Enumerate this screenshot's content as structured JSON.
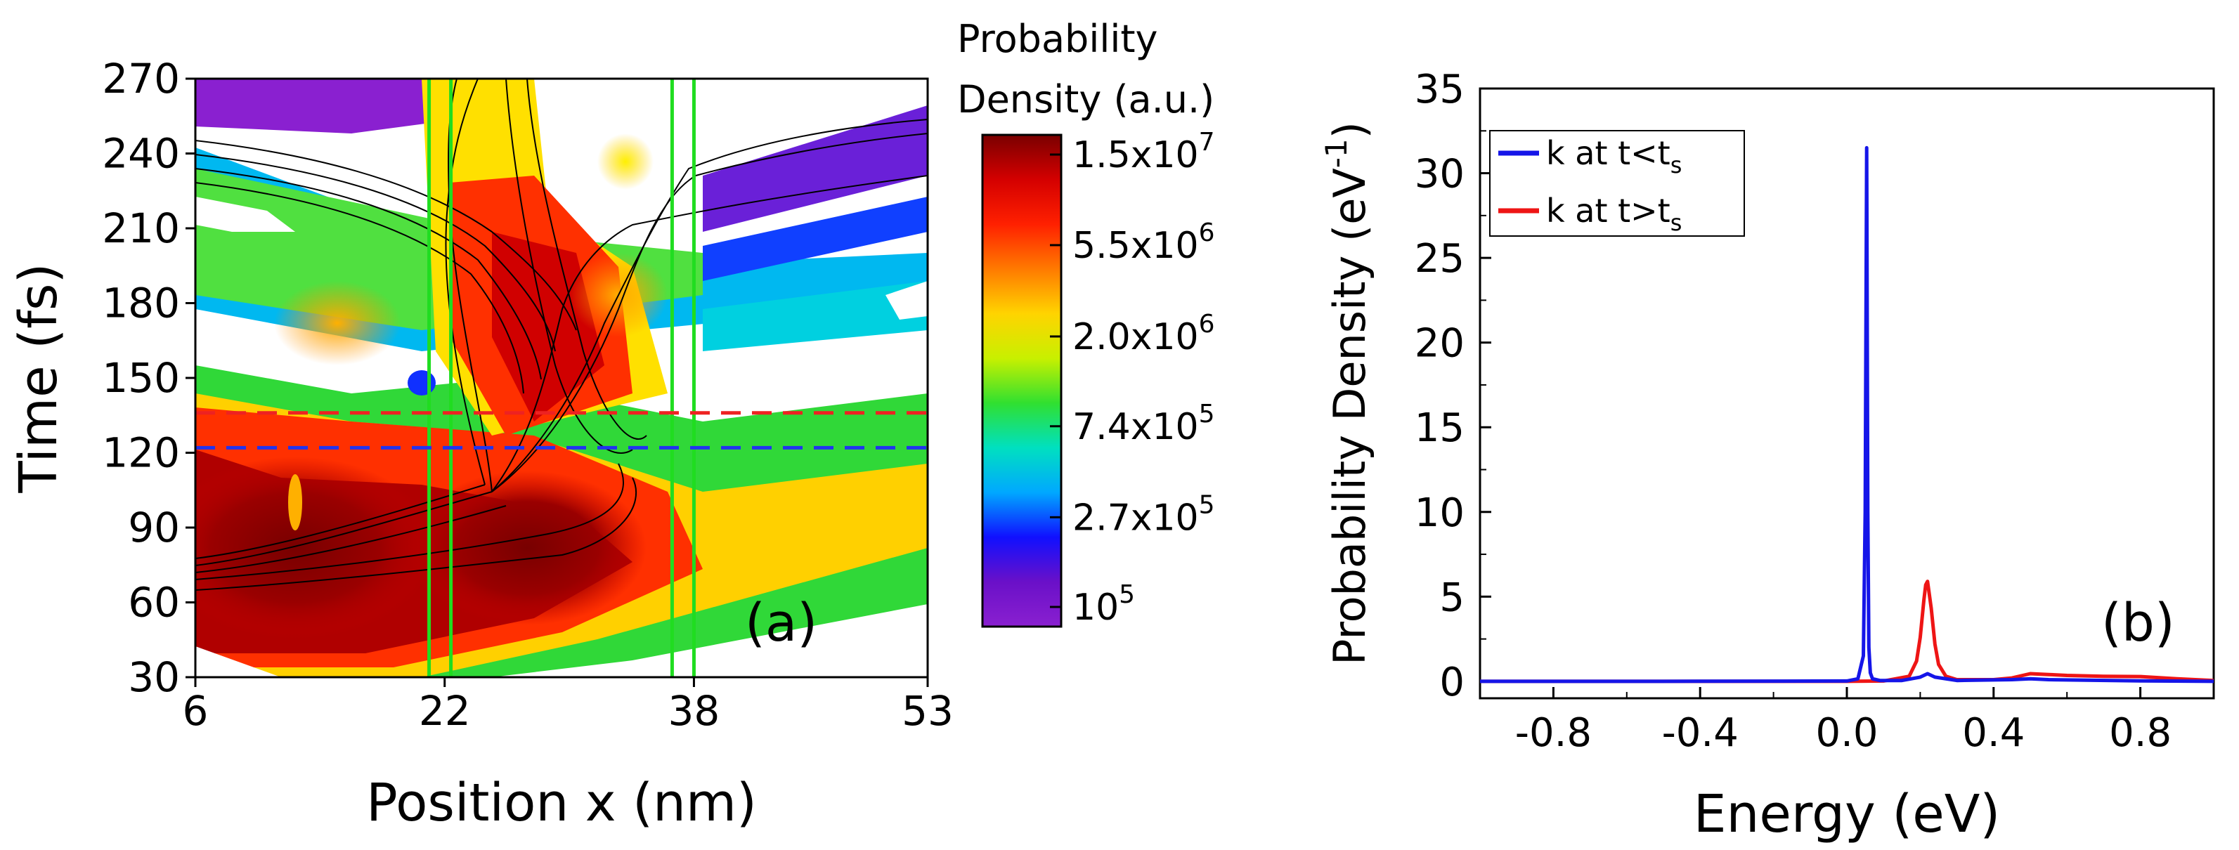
{
  "chart_data": [
    {
      "type": "heatmap",
      "panel_label": "(a)",
      "xlabel": "Position x (nm)",
      "ylabel": "Time (fs)",
      "xlim": [
        6,
        53
      ],
      "ylim": [
        30,
        270
      ],
      "x_ticks": [
        "6",
        "22",
        "38",
        "53"
      ],
      "x_tick_values": [
        6,
        22,
        38,
        53
      ],
      "y_ticks": [
        "30",
        "60",
        "90",
        "120",
        "150",
        "180",
        "210",
        "240",
        "270"
      ],
      "y_tick_values": [
        30,
        60,
        90,
        120,
        150,
        180,
        210,
        240,
        270
      ],
      "colorbar": {
        "title_line1": "Probability",
        "title_line2": "Density (a.u.)",
        "scale": "log",
        "tick_labels": [
          {
            "mantissa": "1.5x10",
            "exp": "7",
            "value": 15000000
          },
          {
            "mantissa": "5.5x10",
            "exp": "6",
            "value": 5500000
          },
          {
            "mantissa": "2.0x10",
            "exp": "6",
            "value": 2000000
          },
          {
            "mantissa": "7.4x10",
            "exp": "5",
            "value": 740000
          },
          {
            "mantissa": "2.7x10",
            "exp": "5",
            "value": 270000
          },
          {
            "mantissa": "10",
            "exp": "5",
            "value": 100000
          }
        ],
        "colors": [
          "#7a0000",
          "#d40000",
          "#ff2000",
          "#ff7a00",
          "#ffd400",
          "#c8f000",
          "#30e030",
          "#00e0c0",
          "#00a8ff",
          "#1010ff",
          "#6a10c8",
          "#8a20d0"
        ]
      },
      "vertical_lines_x": [
        21,
        22.4,
        36.6,
        38
      ],
      "vertical_line_color": "#20dd20",
      "horizontal_dashed": [
        {
          "y": 136,
          "color": "#ee2222"
        },
        {
          "y": 122,
          "color": "#2233ee"
        }
      ]
    },
    {
      "type": "line",
      "panel_label": "(b)",
      "xlabel": "Energy (eV)",
      "ylabel_main": "Probability Density (eV",
      "ylabel_sup": "-1",
      "ylabel_end": ")",
      "xlim": [
        -1.0,
        1.0
      ],
      "ylim": [
        -1.0,
        35
      ],
      "x_ticks": [
        "-0.8",
        "-0.4",
        "0.0",
        "0.4",
        "0.8"
      ],
      "x_tick_values": [
        -0.8,
        -0.4,
        0.0,
        0.4,
        0.8
      ],
      "y_ticks": [
        "0",
        "5",
        "10",
        "15",
        "20",
        "25",
        "30",
        "35"
      ],
      "y_tick_values": [
        0,
        5,
        10,
        15,
        20,
        25,
        30,
        35
      ],
      "legend_position": "top-left",
      "series": [
        {
          "name_main": "k at t<t",
          "name_sub": "s",
          "color": "#1515e8",
          "x": [
            -1.0,
            -0.5,
            0.0,
            0.03,
            0.045,
            0.05,
            0.054,
            0.057,
            0.06,
            0.064,
            0.07,
            0.09,
            0.15,
            0.2,
            0.22,
            0.24,
            0.3,
            0.45,
            0.5,
            0.55,
            0.8,
            1.0
          ],
          "y": [
            0.0,
            0.0,
            0.02,
            0.15,
            1.5,
            10.0,
            31.5,
            10.0,
            2.0,
            0.5,
            0.15,
            0.05,
            0.05,
            0.25,
            0.45,
            0.25,
            0.05,
            0.1,
            0.15,
            0.1,
            0.03,
            0.0
          ]
        },
        {
          "name_main": "k at t>t",
          "name_sub": "s",
          "color": "#ee1515",
          "x": [
            -1.0,
            0.0,
            0.1,
            0.17,
            0.19,
            0.2,
            0.21,
            0.215,
            0.22,
            0.23,
            0.24,
            0.25,
            0.27,
            0.3,
            0.4,
            0.45,
            0.5,
            0.55,
            0.6,
            0.7,
            0.8,
            0.9,
            1.0
          ],
          "y": [
            0.0,
            0.0,
            0.02,
            0.3,
            1.2,
            2.6,
            4.8,
            5.7,
            5.9,
            4.3,
            2.2,
            1.0,
            0.3,
            0.1,
            0.1,
            0.2,
            0.45,
            0.4,
            0.35,
            0.3,
            0.28,
            0.15,
            0.05
          ]
        }
      ]
    }
  ]
}
